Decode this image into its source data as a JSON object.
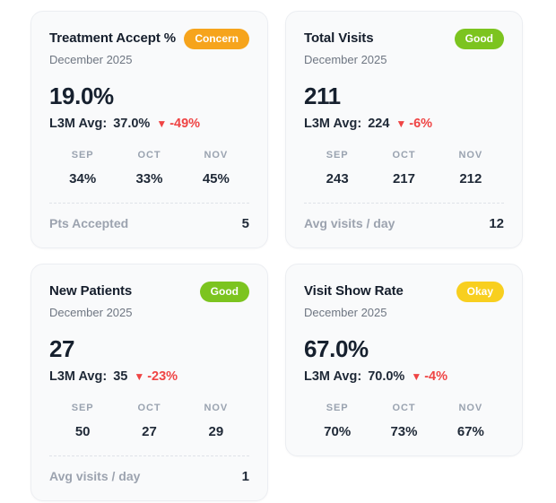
{
  "colors": {
    "badge_concern": "#F6A41C",
    "badge_good": "#7CC41F",
    "badge_okay": "#F8CF1F",
    "delta_negative": "#EF4444",
    "card_background": "#F9FAFB"
  },
  "cards": [
    {
      "title": "Treatment Accept %",
      "badge": {
        "label": "Concern",
        "color": "#F6A41C"
      },
      "subtitle": "December 2025",
      "value": "19.0%",
      "l3m": {
        "label": "L3M Avg:",
        "value": "37.0%",
        "delta_icon": "▼",
        "delta": "-49%"
      },
      "months": [
        {
          "label": "SEP",
          "value": "34%"
        },
        {
          "label": "OCT",
          "value": "33%"
        },
        {
          "label": "NOV",
          "value": "45%"
        }
      ],
      "footer": {
        "label": "Pts Accepted",
        "value": "5"
      }
    },
    {
      "title": "Total Visits",
      "badge": {
        "label": "Good",
        "color": "#7CC41F"
      },
      "subtitle": "December 2025",
      "value": "211",
      "l3m": {
        "label": "L3M Avg:",
        "value": "224",
        "delta_icon": "▼",
        "delta": "-6%"
      },
      "months": [
        {
          "label": "SEP",
          "value": "243"
        },
        {
          "label": "OCT",
          "value": "217"
        },
        {
          "label": "NOV",
          "value": "212"
        }
      ],
      "footer": {
        "label": "Avg visits / day",
        "value": "12"
      }
    },
    {
      "title": "New Patients",
      "badge": {
        "label": "Good",
        "color": "#7CC41F"
      },
      "subtitle": "December 2025",
      "value": "27",
      "l3m": {
        "label": "L3M Avg:",
        "value": "35",
        "delta_icon": "▼",
        "delta": "-23%"
      },
      "months": [
        {
          "label": "SEP",
          "value": "50"
        },
        {
          "label": "OCT",
          "value": "27"
        },
        {
          "label": "NOV",
          "value": "29"
        }
      ],
      "footer": {
        "label": "Avg visits / day",
        "value": "1"
      }
    },
    {
      "title": "Visit Show Rate",
      "badge": {
        "label": "Okay",
        "color": "#F8CF1F"
      },
      "subtitle": "December 2025",
      "value": "67.0%",
      "l3m": {
        "label": "L3M Avg:",
        "value": "70.0%",
        "delta_icon": "▼",
        "delta": "-4%"
      },
      "months": [
        {
          "label": "SEP",
          "value": "70%"
        },
        {
          "label": "OCT",
          "value": "73%"
        },
        {
          "label": "NOV",
          "value": "67%"
        }
      ]
    }
  ]
}
